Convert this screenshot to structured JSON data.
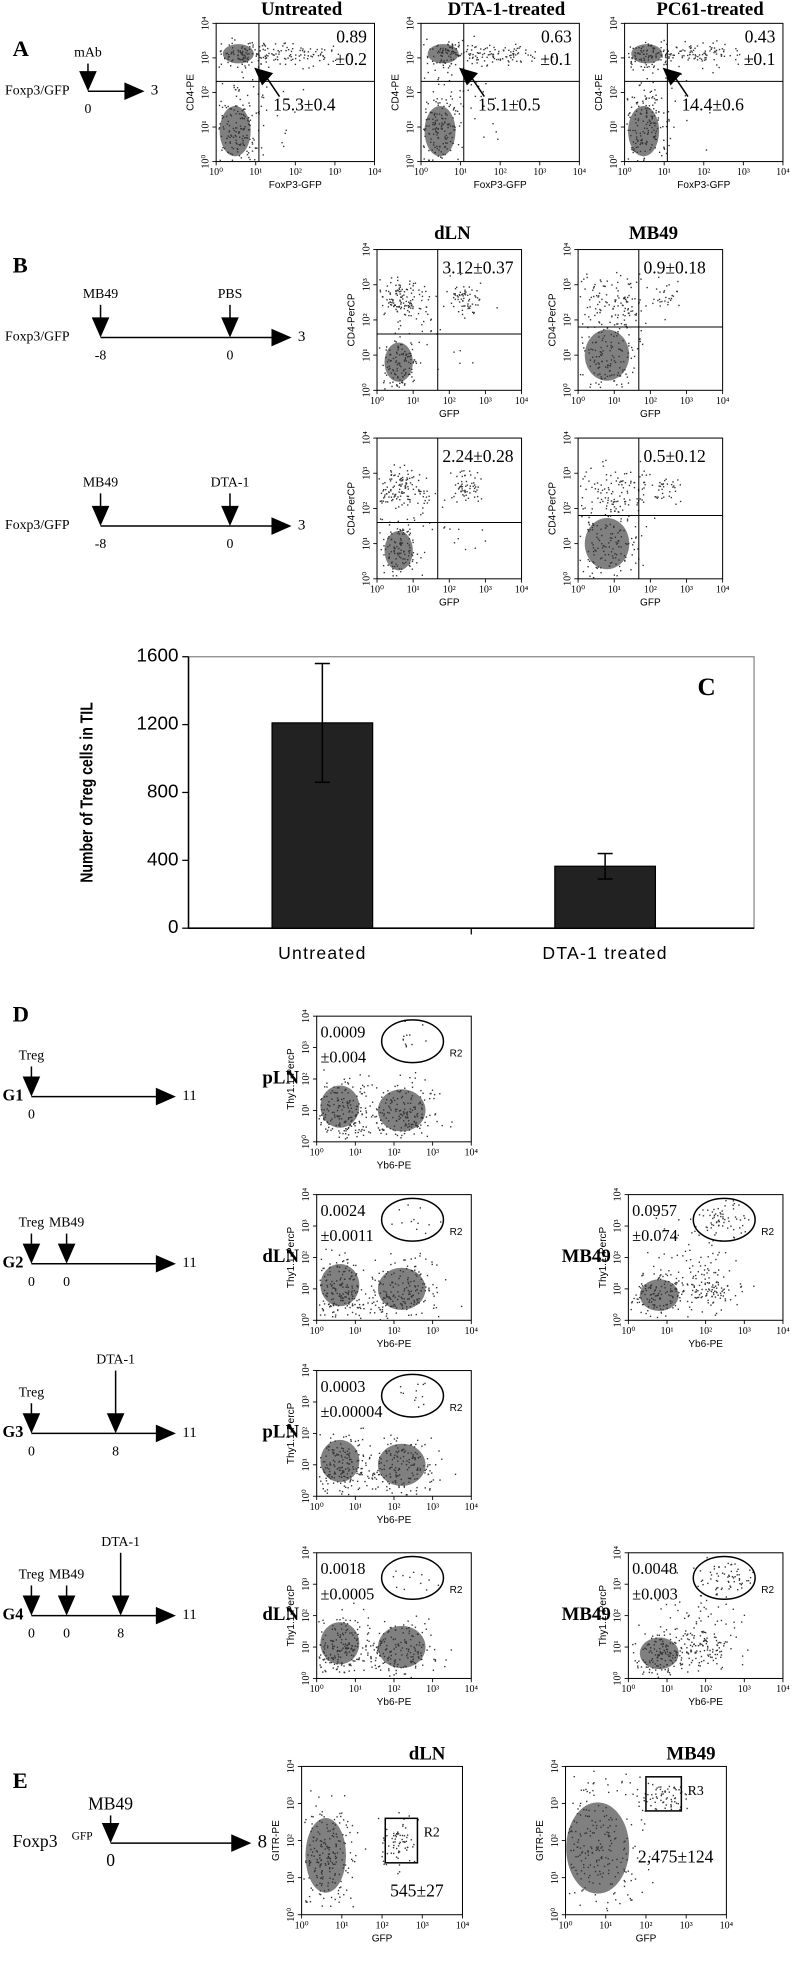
{
  "flow_ticks": [
    "10⁰",
    "10¹",
    "10²",
    "10³",
    "10⁴"
  ],
  "panels": {
    "A": {
      "label": "A",
      "timeline": {
        "strain": "Foxp3/GFP",
        "events": [
          {
            "agent": "mAb",
            "day": "0"
          }
        ],
        "end": "3"
      },
      "x_axis": "FoxP3-GFP",
      "y_axis": "CD4-PE",
      "plots": [
        {
          "title": "Untreated",
          "upper_right": [
            "0.89",
            "±0.2"
          ],
          "lower": "15.3±0.4"
        },
        {
          "title": "DTA-1-treated",
          "upper_right": [
            "0.63",
            "±0.1"
          ],
          "lower": "15.1±0.5"
        },
        {
          "title": "PC61-treated",
          "upper_right": [
            "0.43",
            "±0.1"
          ],
          "lower": "14.4±0.6"
        }
      ]
    },
    "B": {
      "label": "B",
      "columns": [
        "dLN",
        "MB49"
      ],
      "x_axis": "GFP",
      "y_axis": "CD4-PerCP",
      "rows": [
        {
          "timeline": {
            "strain": "Foxp3/GFP",
            "events": [
              {
                "agent": "MB49",
                "day": "-8"
              },
              {
                "agent": "PBS",
                "day": "0"
              }
            ],
            "end": "3"
          },
          "values": [
            "3.12±0.37",
            "0.9±0.18"
          ]
        },
        {
          "timeline": {
            "strain": "Foxp3/GFP",
            "events": [
              {
                "agent": "MB49",
                "day": "-8"
              },
              {
                "agent": "DTA-1",
                "day": "0"
              }
            ],
            "end": "3"
          },
          "values": [
            "2.24±0.28",
            "0.5±0.12"
          ]
        }
      ]
    },
    "D": {
      "label": "D",
      "x_axis": "Yb6-PE",
      "y_axis": "Thy1.1-PercP",
      "gate": "R2",
      "groups": [
        {
          "name": "G1",
          "timeline": {
            "events": [
              {
                "agent": "Treg",
                "day": "0"
              }
            ],
            "end": "11"
          },
          "plots": [
            {
              "tissue": "pLN",
              "value": [
                "0.0009",
                "±0.004"
              ]
            }
          ]
        },
        {
          "name": "G2",
          "timeline": {
            "events": [
              {
                "agent": "Treg",
                "day": "0"
              },
              {
                "agent": "MB49",
                "day": "0"
              }
            ],
            "end": "11"
          },
          "plots": [
            {
              "tissue": "dLN",
              "value": [
                "0.0024",
                "±0.0011"
              ]
            },
            {
              "tissue": "MB49",
              "value": [
                "0.0957",
                "±0.074"
              ]
            }
          ]
        },
        {
          "name": "G3",
          "timeline": {
            "events": [
              {
                "agent": "Treg",
                "day": "0"
              },
              {
                "agent": "DTA-1",
                "day": "8"
              }
            ],
            "end": "11"
          },
          "plots": [
            {
              "tissue": "pLN",
              "value": [
                "0.0003",
                "±0.00004"
              ]
            }
          ]
        },
        {
          "name": "G4",
          "timeline": {
            "events": [
              {
                "agent": "Treg",
                "day": "0"
              },
              {
                "agent": "MB49",
                "day": "0"
              },
              {
                "agent": "DTA-1",
                "day": "8"
              }
            ],
            "end": "11"
          },
          "plots": [
            {
              "tissue": "dLN",
              "value": [
                "0.0018",
                "±0.0005"
              ]
            },
            {
              "tissue": "MB49",
              "value": [
                "0.0048",
                "±0.003"
              ]
            }
          ]
        }
      ]
    },
    "E": {
      "label": "E",
      "x_axis": "GFP",
      "y_axis": "GITR-PE",
      "timeline": {
        "strain": "Foxp3",
        "strain_sup": "GFP",
        "events": [
          {
            "agent": "MB49",
            "day": "0"
          }
        ],
        "end": "8"
      },
      "plots": [
        {
          "title": "dLN",
          "gate": "R2",
          "value": "545±27"
        },
        {
          "title": "MB49",
          "gate": "R3",
          "value": "2,475±124"
        }
      ]
    }
  },
  "chart_data": {
    "type": "bar",
    "annotation": "C",
    "y_label": "Number of Treg cells in TIL",
    "categories": [
      "Untreated",
      "DTA-1 treated"
    ],
    "values": [
      1210,
      365
    ],
    "errors": [
      350,
      75
    ],
    "color": "#222222",
    "ylim": [
      0,
      1600
    ],
    "yticks": [
      0,
      400,
      800,
      1200,
      1600
    ]
  }
}
